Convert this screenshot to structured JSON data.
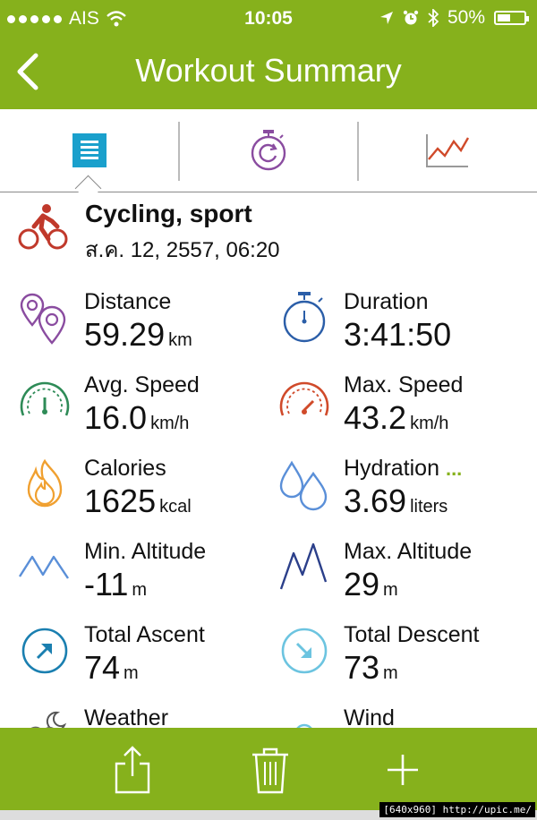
{
  "status": {
    "carrier": "AIS",
    "time": "10:05",
    "battery": "50%",
    "battery_level": 0.5
  },
  "nav": {
    "title": "Workout Summary"
  },
  "activity": {
    "title": "Cycling, sport",
    "date": "ส.ค. 12, 2557, 06:20"
  },
  "stats": {
    "distance": {
      "label": "Distance",
      "value": "59.29",
      "unit": "km"
    },
    "duration": {
      "label": "Duration",
      "value": "3:41:50",
      "unit": ""
    },
    "avg_speed": {
      "label": "Avg. Speed",
      "value": "16.0",
      "unit": "km/h"
    },
    "max_speed": {
      "label": "Max. Speed",
      "value": "43.2",
      "unit": "km/h"
    },
    "calories": {
      "label": "Calories",
      "value": "1625",
      "unit": "kcal"
    },
    "hydration": {
      "label": "Hydration",
      "more": "...",
      "value": "3.69",
      "unit": "liters"
    },
    "min_altitude": {
      "label": "Min. Altitude",
      "value": "-11",
      "unit": "m"
    },
    "max_altitude": {
      "label": "Max. Altitude",
      "value": "29",
      "unit": "m"
    },
    "total_ascent": {
      "label": "Total Ascent",
      "value": "74",
      "unit": "m"
    },
    "total_descent": {
      "label": "Total Descent",
      "value": "73",
      "unit": "m"
    },
    "weather": {
      "label": "Weather"
    },
    "wind": {
      "label": "Wind"
    }
  },
  "watermark": "[640x960] http://upic.me/",
  "colors": {
    "accent": "#86b11c",
    "purple": "#8a4ca0",
    "blue": "#2b5ea8",
    "green": "#2e8b57",
    "red": "#d04a2a",
    "orange": "#f0a030",
    "teal": "#1a9cc8",
    "light_blue": "#5a8fd8"
  }
}
